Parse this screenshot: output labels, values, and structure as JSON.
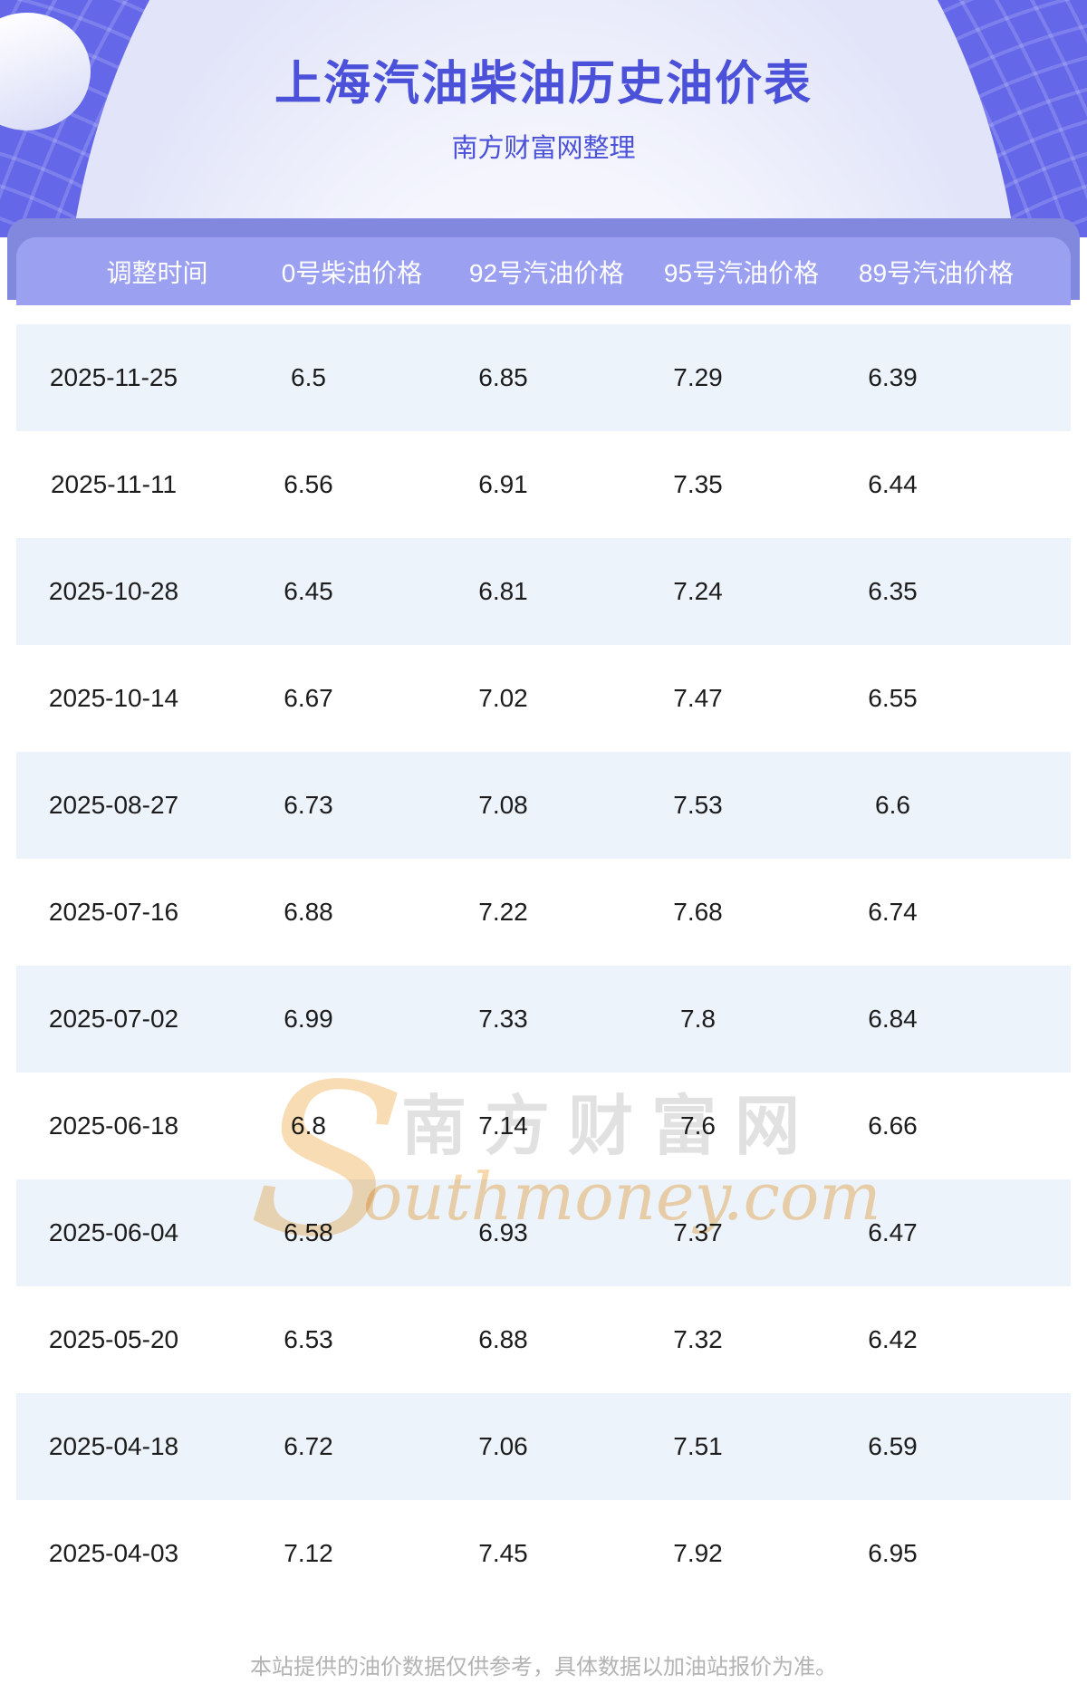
{
  "hero": {
    "title": "上海汽油柴油历史油价表",
    "subtitle": "南方财富网整理"
  },
  "table": {
    "columns": [
      "调整时间",
      "0号柴油价格",
      "92号汽油价格",
      "95号汽油价格",
      "89号汽油价格"
    ],
    "rows": [
      [
        "2025-11-25",
        "6.5",
        "6.85",
        "7.29",
        "6.39"
      ],
      [
        "2025-11-11",
        "6.56",
        "6.91",
        "7.35",
        "6.44"
      ],
      [
        "2025-10-28",
        "6.45",
        "6.81",
        "7.24",
        "6.35"
      ],
      [
        "2025-10-14",
        "6.67",
        "7.02",
        "7.47",
        "6.55"
      ],
      [
        "2025-08-27",
        "6.73",
        "7.08",
        "7.53",
        "6.6"
      ],
      [
        "2025-07-16",
        "6.88",
        "7.22",
        "7.68",
        "6.74"
      ],
      [
        "2025-07-02",
        "6.99",
        "7.33",
        "7.8",
        "6.84"
      ],
      [
        "2025-06-18",
        "6.8",
        "7.14",
        "7.6",
        "6.66"
      ],
      [
        "2025-06-04",
        "6.58",
        "6.93",
        "7.37",
        "6.47"
      ],
      [
        "2025-05-20",
        "6.53",
        "6.88",
        "7.32",
        "6.42"
      ],
      [
        "2025-04-18",
        "6.72",
        "7.06",
        "7.51",
        "6.59"
      ],
      [
        "2025-04-03",
        "7.12",
        "7.45",
        "7.92",
        "6.95"
      ]
    ]
  },
  "watermark": {
    "s": "S",
    "cn": "南方财富网",
    "latin": "outhmoney.com"
  },
  "footer": {
    "disclaimer": "本站提供的油价数据仅供参考，具体数据以加油站报价为准。"
  },
  "colors": {
    "hero_background": "#6468e8",
    "title_text": "#4b51d8",
    "band": "#8288de",
    "header_row": "#9ba0f0",
    "row_alt": "#edf3fb",
    "cell_text": "#1c1c1c",
    "watermark_orange": "#f8d7aa",
    "watermark_gray": "#e1e1e1",
    "footer_text": "#b3b3b3"
  }
}
